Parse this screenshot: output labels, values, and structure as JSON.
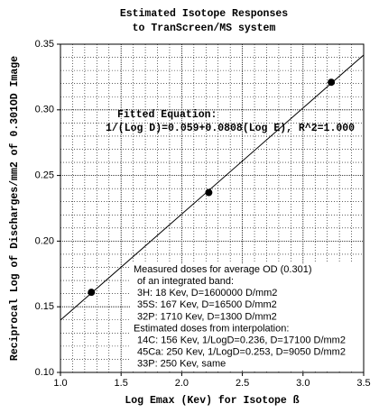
{
  "chart_data": {
    "type": "scatter",
    "title": [
      "Estimated Isotope Responses",
      "to TranScreen/MS system"
    ],
    "xlabel": "Log Emax (Kev) for Isotope ß",
    "ylabel": "Reciprocal Log of Discharges/mm2 of 0.301OD Image",
    "xlim": [
      1.0,
      3.5
    ],
    "ylim": [
      0.1,
      0.35
    ],
    "xticks": [
      {
        "value": 1.0,
        "label": "1.0"
      },
      1.5,
      {
        "value": 2.0,
        "label": "2.0"
      },
      2.5,
      {
        "value": 3.0,
        "label": "3.0"
      },
      3.5
    ],
    "yticks": [
      {
        "value": 0.1,
        "label": "0.10"
      },
      0.15,
      {
        "value": 0.2,
        "label": "0.20"
      },
      0.25,
      {
        "value": 0.3,
        "label": "0.30"
      },
      0.35
    ],
    "minor_xticks": [
      1.1,
      1.2,
      1.3,
      1.4,
      1.6,
      1.7,
      1.8,
      1.9,
      2.1,
      2.2,
      2.3,
      2.4,
      2.6,
      2.7,
      2.8,
      2.9,
      3.1,
      3.2,
      3.3,
      3.4
    ],
    "minor_yticks": [
      0.11,
      0.12,
      0.13,
      0.14,
      0.16,
      0.17,
      0.18,
      0.19,
      0.21,
      0.22,
      0.23,
      0.24,
      0.26,
      0.27,
      0.28,
      0.29,
      0.31,
      0.32,
      0.33,
      0.34
    ],
    "grid": true,
    "series": [
      {
        "type": "scatter",
        "color": "#000000",
        "x": [
          1.255,
          2.223,
          3.233
        ],
        "values": [
          0.161,
          0.237,
          0.321
        ]
      },
      {
        "type": "line",
        "color": "#000000",
        "x": [
          1.0,
          3.5
        ],
        "values": [
          0.1398,
          0.3418
        ]
      }
    ],
    "annotations": {
      "equation": [
        "Fitted Equation:",
        "1/(Log D)=0.059+0.0808(Log E), R^2=1.000"
      ],
      "notes": [
        "Measured doses for average OD (0.301)",
        "of an integrated band:",
        "3H: 18 Kev, D=1600000 D/mm2",
        "35S: 167 Kev, D=16500 D/mm2",
        "32P: 1710 Kev, D=1300 D/mm2",
        "Estimated doses from interpolation:",
        "14C: 156 Kev, 1/LogD=0.236, D=17100 D/mm2",
        "45Ca: 250 Kev, 1/LogD=0.253, D=9050 D/mm2",
        "33P: 250 Kev, same"
      ]
    }
  }
}
